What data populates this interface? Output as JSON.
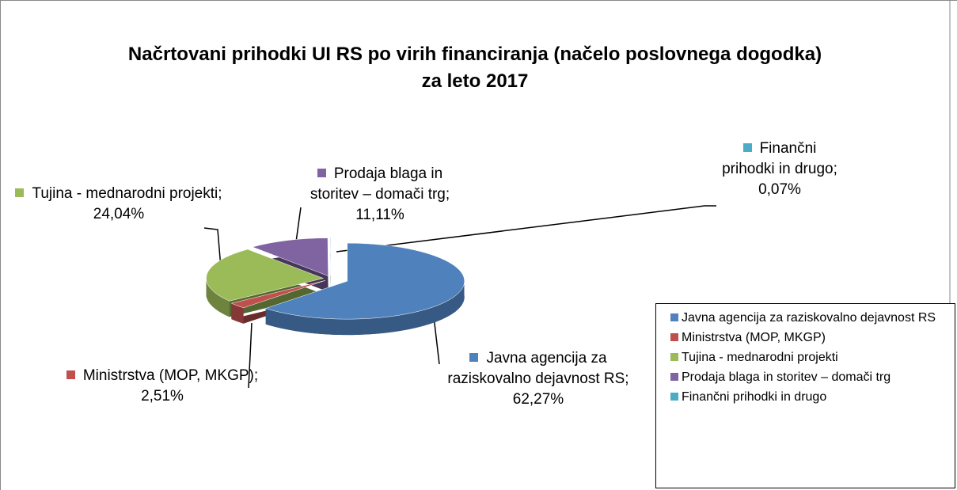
{
  "chart_data": {
    "type": "pie",
    "title": "Načrtovani prihodki UI RS po virih financiranja (načelo poslovnega dogodka) za leto 2017",
    "categories": [
      "Javna agencija za raziskovalno dejavnost RS",
      "Ministrstva (MOP, MKGP)",
      "Tujina - mednarodni projekti",
      "Prodaja blaga in storitev – domači trg",
      "Finančni prihodki in drugo"
    ],
    "values": [
      62.27,
      2.51,
      24.04,
      11.11,
      0.07
    ],
    "value_labels": [
      "62,27%",
      "2,51%",
      "24,04%",
      "11,11%",
      "0,07%"
    ],
    "colors": [
      "#4f81bd",
      "#c0504d",
      "#9bbb59",
      "#8064a2",
      "#4bacc6"
    ],
    "legend": "right"
  }
}
